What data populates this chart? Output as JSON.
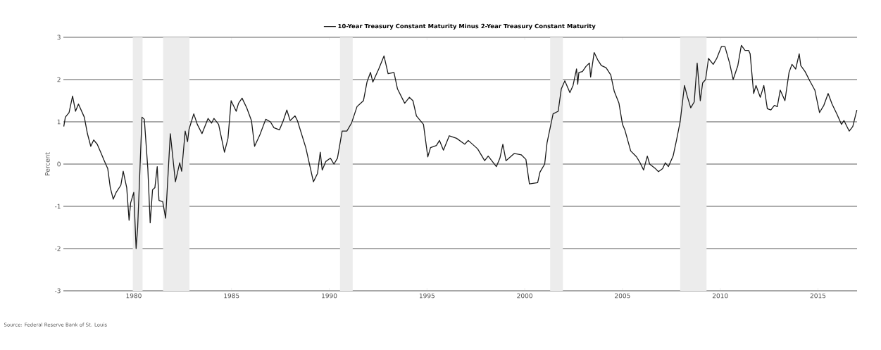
{
  "chart_data": {
    "type": "line",
    "ylabel": "Percent",
    "annotations": [
      "Source: Federal Reserve Bank of St. Louis"
    ],
    "xlim": [
      1976.4,
      2017.0
    ],
    "xticks": [
      1980,
      1985,
      1990,
      1995,
      2000,
      2005,
      2010,
      2015
    ],
    "ylim": [
      -3,
      3
    ],
    "yticks": [
      -3,
      -2,
      -1,
      0,
      1,
      2,
      3
    ],
    "grid": "y",
    "legend": "top",
    "bands": [
      {
        "axis": "x",
        "from": 1979.95,
        "to": 1980.45,
        "color": "#ececec"
      },
      {
        "axis": "x",
        "from": 1981.5,
        "to": 1982.85,
        "color": "#ececec"
      },
      {
        "axis": "x",
        "from": 1990.55,
        "to": 1991.2,
        "color": "#ececec"
      },
      {
        "axis": "x",
        "from": 2001.3,
        "to": 2001.95,
        "color": "#ececec"
      },
      {
        "axis": "x",
        "from": 2007.95,
        "to": 2009.3,
        "color": "#ececec"
      }
    ],
    "series": [
      {
        "name": "10-Year Treasury Constant Maturity Minus 2-Year Treasury Constant Maturity",
        "color": "#1a1a1a",
        "x": [
          1976.42,
          1976.5,
          1976.69,
          1976.87,
          1977.02,
          1977.17,
          1977.47,
          1977.63,
          1977.8,
          1977.95,
          1978.13,
          1978.31,
          1978.49,
          1978.67,
          1978.8,
          1978.95,
          1979.1,
          1979.34,
          1979.46,
          1979.64,
          1979.76,
          1979.84,
          1980.0,
          1980.12,
          1980.2,
          1980.42,
          1980.54,
          1980.72,
          1980.84,
          1980.96,
          1981.08,
          1981.2,
          1981.29,
          1981.48,
          1981.63,
          1981.87,
          1982.13,
          1982.35,
          1982.45,
          1982.63,
          1982.75,
          1982.83,
          1983.07,
          1983.25,
          1983.49,
          1983.8,
          1983.98,
          1984.1,
          1984.34,
          1984.64,
          1984.82,
          1984.98,
          1985.24,
          1985.36,
          1985.54,
          1985.78,
          1986.02,
          1986.18,
          1986.45,
          1986.75,
          1986.99,
          1987.17,
          1987.45,
          1987.65,
          1987.83,
          1988.0,
          1988.25,
          1988.37,
          1988.8,
          1989.19,
          1989.4,
          1989.54,
          1989.64,
          1989.82,
          1990.06,
          1990.24,
          1990.42,
          1990.66,
          1990.9,
          1991.14,
          1991.42,
          1991.75,
          1991.93,
          1992.11,
          1992.23,
          1992.53,
          1992.8,
          1993.01,
          1993.31,
          1993.49,
          1993.86,
          1994.1,
          1994.28,
          1994.46,
          1994.82,
          1995.04,
          1995.18,
          1995.48,
          1995.64,
          1995.84,
          1996.14,
          1996.51,
          1996.93,
          1997.11,
          1997.59,
          1997.95,
          1998.13,
          1998.55,
          1998.73,
          1998.88,
          1999.04,
          1999.46,
          1999.82,
          2000.06,
          2000.24,
          2000.66,
          2000.78,
          2001.02,
          2001.14,
          2001.45,
          2001.71,
          2001.87,
          2002.05,
          2002.31,
          2002.47,
          2002.65,
          2002.71,
          2002.77,
          2002.95,
          2003.13,
          2003.31,
          2003.37,
          2003.55,
          2003.73,
          2003.92,
          2004.16,
          2004.4,
          2004.58,
          2004.82,
          2005.0,
          2005.12,
          2005.42,
          2005.72,
          2005.9,
          2006.08,
          2006.27,
          2006.39,
          2006.69,
          2006.84,
          2007.05,
          2007.19,
          2007.35,
          2007.59,
          2007.77,
          2007.95,
          2008.17,
          2008.31,
          2008.49,
          2008.67,
          2008.82,
          2008.98,
          2009.1,
          2009.25,
          2009.4,
          2009.64,
          2009.82,
          2010.06,
          2010.24,
          2010.48,
          2010.66,
          2010.9,
          2011.08,
          2011.27,
          2011.45,
          2011.53,
          2011.71,
          2011.83,
          2012.05,
          2012.23,
          2012.41,
          2012.59,
          2012.77,
          2012.92,
          2013.07,
          2013.31,
          2013.52,
          2013.67,
          2013.86,
          2014.04,
          2014.12,
          2014.34,
          2014.58,
          2014.84,
          2015.08,
          2015.3,
          2015.52,
          2015.72,
          2015.96,
          2016.2,
          2016.33,
          2016.6,
          2016.78,
          2016.99
        ],
        "values": [
          0.89,
          1.11,
          1.22,
          1.61,
          1.25,
          1.42,
          1.11,
          0.72,
          0.42,
          0.57,
          0.47,
          0.28,
          0.08,
          -0.11,
          -0.56,
          -0.83,
          -0.67,
          -0.5,
          -0.17,
          -0.56,
          -1.33,
          -0.92,
          -0.67,
          -2.0,
          -1.5,
          1.11,
          1.06,
          -0.11,
          -1.39,
          -0.61,
          -0.56,
          -0.06,
          -0.86,
          -0.89,
          -1.28,
          0.72,
          -0.42,
          0.03,
          -0.17,
          0.78,
          0.53,
          0.83,
          1.19,
          0.94,
          0.72,
          1.08,
          0.97,
          1.08,
          0.94,
          0.28,
          0.61,
          1.5,
          1.25,
          1.44,
          1.56,
          1.33,
          1.03,
          0.42,
          0.69,
          1.06,
          1.0,
          0.86,
          0.81,
          1.03,
          1.28,
          1.03,
          1.14,
          1.03,
          0.39,
          -0.42,
          -0.22,
          0.28,
          -0.14,
          0.06,
          0.14,
          0.0,
          0.14,
          0.78,
          0.78,
          0.97,
          1.36,
          1.5,
          1.94,
          2.17,
          1.94,
          2.25,
          2.56,
          2.14,
          2.17,
          1.78,
          1.44,
          1.58,
          1.5,
          1.14,
          0.94,
          0.17,
          0.39,
          0.44,
          0.56,
          0.33,
          0.67,
          0.61,
          0.47,
          0.56,
          0.36,
          0.08,
          0.19,
          -0.06,
          0.14,
          0.47,
          0.08,
          0.25,
          0.22,
          0.11,
          -0.47,
          -0.44,
          -0.19,
          0.0,
          0.5,
          1.19,
          1.25,
          1.78,
          1.97,
          1.69,
          1.86,
          2.25,
          1.89,
          2.17,
          2.19,
          2.31,
          2.39,
          2.06,
          2.64,
          2.47,
          2.33,
          2.28,
          2.11,
          1.72,
          1.44,
          0.94,
          0.81,
          0.31,
          0.17,
          0.03,
          -0.14,
          0.19,
          0.0,
          -0.11,
          -0.18,
          -0.11,
          0.03,
          -0.06,
          0.19,
          0.58,
          1.0,
          1.86,
          1.61,
          1.33,
          1.47,
          2.39,
          1.5,
          1.92,
          2.0,
          2.5,
          2.36,
          2.5,
          2.78,
          2.78,
          2.39,
          2.0,
          2.33,
          2.81,
          2.69,
          2.69,
          2.61,
          1.67,
          1.86,
          1.58,
          1.86,
          1.31,
          1.28,
          1.39,
          1.36,
          1.75,
          1.5,
          2.17,
          2.36,
          2.25,
          2.61,
          2.33,
          2.19,
          1.97,
          1.75,
          1.22,
          1.39,
          1.67,
          1.42,
          1.19,
          0.94,
          1.03,
          0.78,
          0.89,
          1.28
        ]
      }
    ]
  }
}
